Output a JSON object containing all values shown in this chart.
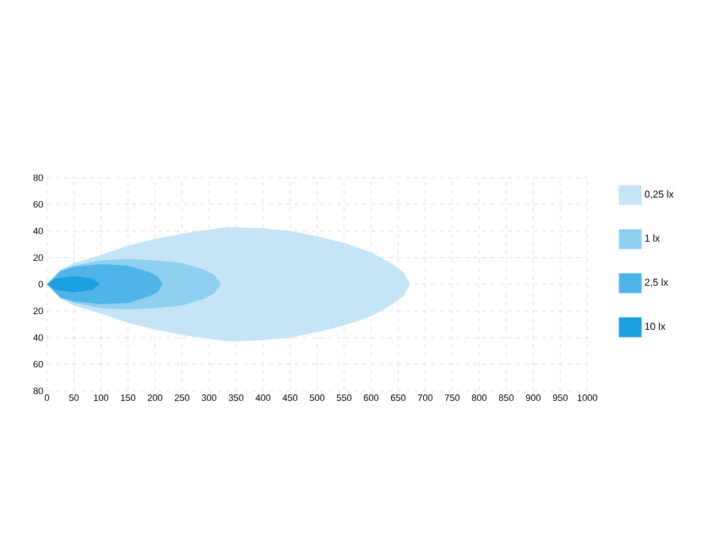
{
  "chart_data": {
    "type": "area",
    "xlim": [
      0,
      1000
    ],
    "ylim": [
      -80,
      80
    ],
    "xticks": [
      0,
      50,
      100,
      150,
      200,
      250,
      300,
      350,
      400,
      450,
      500,
      550,
      600,
      650,
      700,
      750,
      800,
      850,
      900,
      950,
      1000
    ],
    "yticks": [
      {
        "value": -80,
        "label": "80"
      },
      {
        "value": -60,
        "label": "60"
      },
      {
        "value": -40,
        "label": "40"
      },
      {
        "value": -20,
        "label": "20"
      },
      0,
      20,
      40,
      60,
      80
    ],
    "grid": true,
    "legend": "right",
    "series": [
      {
        "name": "0,25 lx",
        "color": "#c5e5f7",
        "x": [
          0,
          25,
          50,
          100,
          150,
          200,
          250,
          300,
          336,
          400,
          450,
          500,
          550,
          600,
          640,
          660,
          672
        ],
        "values": [
          0,
          11,
          16,
          22,
          29,
          34,
          38,
          41,
          43,
          42,
          40,
          36,
          31,
          24,
          15,
          9,
          0
        ]
      },
      {
        "color": "#c5e5f7",
        "x": [
          0,
          25,
          50,
          100,
          150,
          200,
          250,
          300,
          336,
          400,
          450,
          500,
          550,
          600,
          640,
          660,
          672
        ],
        "values": [
          0,
          -11,
          -16,
          -22,
          -29,
          -34,
          -38,
          -41,
          -43,
          -42,
          -40,
          -36,
          -31,
          -24,
          -15,
          -9,
          0
        ]
      },
      {
        "name": "1 lx",
        "color": "#8fd0f0",
        "x": [
          0,
          25,
          50,
          100,
          150,
          200,
          250,
          290,
          310,
          322
        ],
        "values": [
          0,
          10,
          14,
          18,
          19,
          18,
          16,
          11,
          7,
          0
        ]
      },
      {
        "color": "#8fd0f0",
        "x": [
          0,
          25,
          50,
          100,
          150,
          200,
          250,
          290,
          310,
          322
        ],
        "values": [
          0,
          -10,
          -14,
          -18,
          -19,
          -18,
          -16,
          -11,
          -7,
          0
        ]
      },
      {
        "name": "2,5 lx",
        "color": "#4fb5e8",
        "x": [
          0,
          25,
          50,
          100,
          150,
          190,
          205,
          214
        ],
        "values": [
          0,
          10,
          13,
          15,
          14,
          9,
          6,
          0
        ]
      },
      {
        "color": "#4fb5e8",
        "x": [
          0,
          25,
          50,
          100,
          150,
          190,
          205,
          214
        ],
        "values": [
          0,
          -10,
          -13,
          -15,
          -14,
          -9,
          -6,
          0
        ]
      },
      {
        "name": "10 lx",
        "color": "#1a9fe0",
        "x": [
          0,
          15,
          30,
          50,
          70,
          85,
          98
        ],
        "values": [
          0,
          4,
          5,
          6,
          5,
          4,
          0
        ]
      },
      {
        "color": "#1a9fe0",
        "x": [
          0,
          15,
          30,
          50,
          70,
          85,
          98
        ],
        "values": [
          0,
          -4,
          -5,
          -6,
          -5,
          -4,
          0
        ]
      }
    ]
  }
}
